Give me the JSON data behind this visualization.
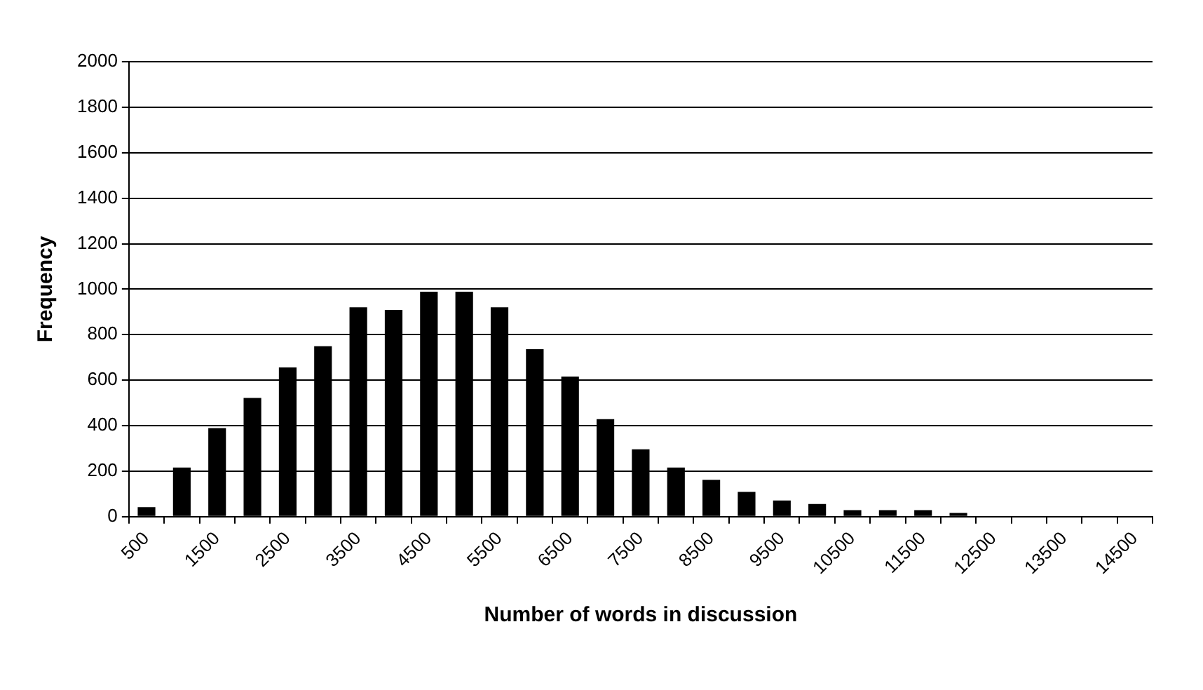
{
  "chart_data": {
    "type": "bar",
    "xlabel": "Number of words in discussion",
    "ylabel": "Frequency",
    "categories": [
      "500",
      null,
      "1500",
      null,
      "2500",
      null,
      "3500",
      null,
      "4500",
      null,
      "5500",
      null,
      "6500",
      null,
      "7500",
      null,
      "8500",
      null,
      "9500",
      null,
      "10500",
      null,
      "11500",
      null,
      "12500",
      null,
      "13500",
      null,
      "14500"
    ],
    "values": [
      42,
      216,
      389,
      522,
      656,
      749,
      920,
      909,
      989,
      989,
      920,
      736,
      616,
      429,
      296,
      216,
      162,
      109,
      71,
      56,
      29,
      29,
      29,
      16,
      0,
      0,
      0,
      0,
      0
    ],
    "color": "#000000",
    "ylim": [
      0,
      2000
    ],
    "yticks": [
      0,
      200,
      400,
      600,
      800,
      1000,
      1200,
      1400,
      1600,
      1800,
      2000
    ],
    "grid": "y",
    "legend": false
  }
}
